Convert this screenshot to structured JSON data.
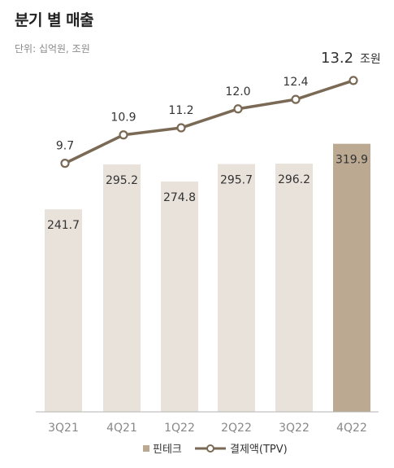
{
  "header": {
    "title": "분기 별 매출",
    "unit": "단위: 십억원, 조원"
  },
  "colors": {
    "bar": "#e8e2da",
    "bar_highlight": "#bba992",
    "line": "#7a6a55",
    "marker_fill": "#ffffff",
    "axis": "#b3b3b3",
    "text": "#333333",
    "tick": "#888888"
  },
  "chart_data": {
    "type": "bar",
    "categories": [
      "3Q21",
      "4Q21",
      "1Q22",
      "2Q22",
      "3Q22",
      "4Q22"
    ],
    "series": [
      {
        "name": "핀테크",
        "type": "bar",
        "values": [
          241.7,
          295.2,
          274.8,
          295.7,
          296.2,
          319.9
        ],
        "labels": [
          "241.7",
          "295.2",
          "274.8",
          "295.7",
          "296.2",
          "319.9"
        ],
        "highlight_index": 5
      },
      {
        "name": "결제액(TPV)",
        "type": "line",
        "values": [
          9.7,
          10.9,
          11.2,
          12.0,
          12.4,
          13.2
        ],
        "labels": [
          "9.7",
          "10.9",
          "11.2",
          "12.0",
          "12.4",
          "13.2"
        ],
        "last_label_unit": "조원"
      }
    ],
    "legend": {
      "bar": "핀테크",
      "line": "결제액(TPV)",
      "position": "bottom"
    },
    "grid": false
  }
}
